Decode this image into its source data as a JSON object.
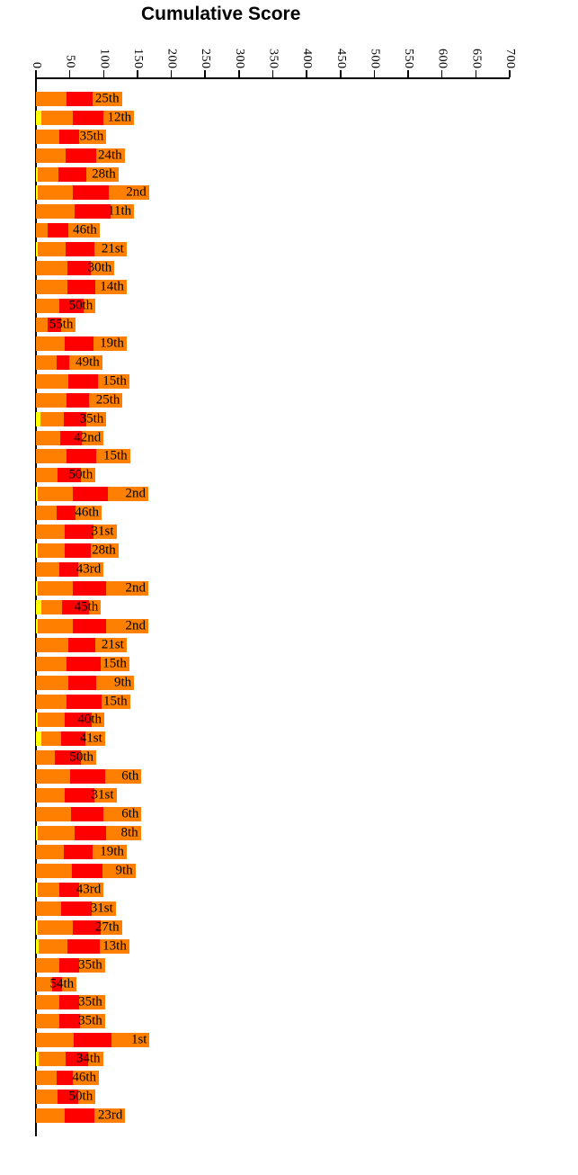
{
  "title": "Cumulative Score",
  "colors": {
    "yellow": "#FFFF00",
    "orange": "#FF8000",
    "red": "#FF0000",
    "axis": "#000000",
    "label_text": "#000000",
    "background": "#FFFFFF"
  },
  "chart_data": {
    "type": "bar",
    "orientation": "horizontal-stacked",
    "title": "Cumulative Score",
    "xlabel": "",
    "ylabel": "",
    "grid": false,
    "legend": null,
    "axis": {
      "position": "top",
      "min": 0,
      "max": 700,
      "tick_interval": 50,
      "tick_labels": [
        "0",
        "50",
        "100",
        "150",
        "200",
        "250",
        "300",
        "350",
        "400",
        "450",
        "500",
        "550",
        "600",
        "650",
        "700"
      ],
      "tick_label_rotation_deg": 90
    },
    "segment_order": [
      "yellow",
      "orange1",
      "red",
      "orange2"
    ],
    "bars": [
      {
        "label": "25th",
        "yellow": 0,
        "orange1": 45,
        "red": 39,
        "orange2": 43
      },
      {
        "label": "12th",
        "yellow": 8,
        "orange1": 46,
        "red": 46,
        "orange2": 45
      },
      {
        "label": "35th",
        "yellow": 0,
        "orange1": 35,
        "red": 29,
        "orange2": 40
      },
      {
        "label": "24th",
        "yellow": 0,
        "orange1": 44,
        "red": 45,
        "orange2": 42
      },
      {
        "label": "28th",
        "yellow": 2,
        "orange1": 31,
        "red": 42,
        "orange2": 47
      },
      {
        "label": "2nd",
        "yellow": 2,
        "orange1": 53,
        "red": 52,
        "orange2": 60
      },
      {
        "label": "11th",
        "yellow": 0,
        "orange1": 57,
        "red": 53,
        "orange2": 35
      },
      {
        "label": "46th",
        "yellow": 0,
        "orange1": 17,
        "red": 31,
        "orange2": 46
      },
      {
        "label": "21st",
        "yellow": 2,
        "orange1": 42,
        "red": 42,
        "orange2": 48
      },
      {
        "label": "30th",
        "yellow": 0,
        "orange1": 46,
        "red": 35,
        "orange2": 35
      },
      {
        "label": "14th",
        "yellow": 0,
        "orange1": 46,
        "red": 42,
        "orange2": 46
      },
      {
        "label": "50th",
        "yellow": 0,
        "orange1": 35,
        "red": 35,
        "orange2": 18
      },
      {
        "label": "55th",
        "yellow": 0,
        "orange1": 17,
        "red": 20,
        "orange2": 22
      },
      {
        "label": "19th",
        "yellow": 0,
        "orange1": 42,
        "red": 43,
        "orange2": 49
      },
      {
        "label": "49th",
        "yellow": 0,
        "orange1": 30,
        "red": 19,
        "orange2": 49
      },
      {
        "label": "15th",
        "yellow": 0,
        "orange1": 48,
        "red": 44,
        "orange2": 46
      },
      {
        "label": "25th",
        "yellow": 0,
        "orange1": 45,
        "red": 33,
        "orange2": 50
      },
      {
        "label": "35th",
        "yellow": 7,
        "orange1": 34,
        "red": 33,
        "orange2": 30
      },
      {
        "label": "42nd",
        "yellow": 0,
        "orange1": 36,
        "red": 32,
        "orange2": 32
      },
      {
        "label": "15th",
        "yellow": 0,
        "orange1": 45,
        "red": 44,
        "orange2": 50
      },
      {
        "label": "50th",
        "yellow": 0,
        "orange1": 32,
        "red": 35,
        "orange2": 21
      },
      {
        "label": "2nd",
        "yellow": 2,
        "orange1": 52,
        "red": 52,
        "orange2": 60
      },
      {
        "label": "46th",
        "yellow": 0,
        "orange1": 31,
        "red": 28,
        "orange2": 38
      },
      {
        "label": "31st",
        "yellow": 0,
        "orange1": 43,
        "red": 42,
        "orange2": 34
      },
      {
        "label": "28th",
        "yellow": 2,
        "orange1": 41,
        "red": 38,
        "orange2": 41
      },
      {
        "label": "43rd",
        "yellow": 0,
        "orange1": 35,
        "red": 27,
        "orange2": 38
      },
      {
        "label": "2nd",
        "yellow": 2,
        "orange1": 52,
        "red": 50,
        "orange2": 62
      },
      {
        "label": "45th",
        "yellow": 8,
        "orange1": 30,
        "red": 40,
        "orange2": 18
      },
      {
        "label": "2nd",
        "yellow": 2,
        "orange1": 52,
        "red": 50,
        "orange2": 62
      },
      {
        "label": "21st",
        "yellow": 0,
        "orange1": 48,
        "red": 40,
        "orange2": 46
      },
      {
        "label": "15th",
        "yellow": 0,
        "orange1": 45,
        "red": 51,
        "orange2": 42
      },
      {
        "label": "9th",
        "yellow": 0,
        "orange1": 48,
        "red": 41,
        "orange2": 56
      },
      {
        "label": "15th",
        "yellow": 0,
        "orange1": 45,
        "red": 52,
        "orange2": 42
      },
      {
        "label": "40th",
        "yellow": 2,
        "orange1": 41,
        "red": 40,
        "orange2": 18
      },
      {
        "label": "41st",
        "yellow": 8,
        "orange1": 29,
        "red": 36,
        "orange2": 29
      },
      {
        "label": "50th",
        "yellow": 0,
        "orange1": 28,
        "red": 38,
        "orange2": 23
      },
      {
        "label": "6th",
        "yellow": 0,
        "orange1": 51,
        "red": 51,
        "orange2": 54
      },
      {
        "label": "31st",
        "yellow": 0,
        "orange1": 43,
        "red": 43,
        "orange2": 33
      },
      {
        "label": "6th",
        "yellow": 0,
        "orange1": 52,
        "red": 47,
        "orange2": 57
      },
      {
        "label": "8th",
        "yellow": 2,
        "orange1": 55,
        "red": 46,
        "orange2": 52
      },
      {
        "label": "19th",
        "yellow": 0,
        "orange1": 41,
        "red": 43,
        "orange2": 50
      },
      {
        "label": "9th",
        "yellow": 0,
        "orange1": 53,
        "red": 45,
        "orange2": 49
      },
      {
        "label": "43rd",
        "yellow": 3,
        "orange1": 32,
        "red": 29,
        "orange2": 36
      },
      {
        "label": "31st",
        "yellow": 0,
        "orange1": 37,
        "red": 45,
        "orange2": 36
      },
      {
        "label": "27th",
        "yellow": 2,
        "orange1": 52,
        "red": 42,
        "orange2": 31
      },
      {
        "label": "13th",
        "yellow": 4,
        "orange1": 42,
        "red": 49,
        "orange2": 43
      },
      {
        "label": "35th",
        "yellow": 0,
        "orange1": 34,
        "red": 30,
        "orange2": 38
      },
      {
        "label": "54th",
        "yellow": 0,
        "orange1": 24,
        "red": 15,
        "orange2": 21
      },
      {
        "label": "35th",
        "yellow": 0,
        "orange1": 34,
        "red": 30,
        "orange2": 38
      },
      {
        "label": "35th",
        "yellow": 0,
        "orange1": 34,
        "red": 31,
        "orange2": 37
      },
      {
        "label": "1st",
        "yellow": 0,
        "orange1": 56,
        "red": 55,
        "orange2": 57
      },
      {
        "label": "34th",
        "yellow": 4,
        "orange1": 40,
        "red": 33,
        "orange2": 22
      },
      {
        "label": "46th",
        "yellow": 0,
        "orange1": 31,
        "red": 24,
        "orange2": 38
      },
      {
        "label": "50th",
        "yellow": 0,
        "orange1": 32,
        "red": 30,
        "orange2": 26
      },
      {
        "label": "23rd",
        "yellow": 0,
        "orange1": 43,
        "red": 43,
        "orange2": 46
      }
    ]
  }
}
